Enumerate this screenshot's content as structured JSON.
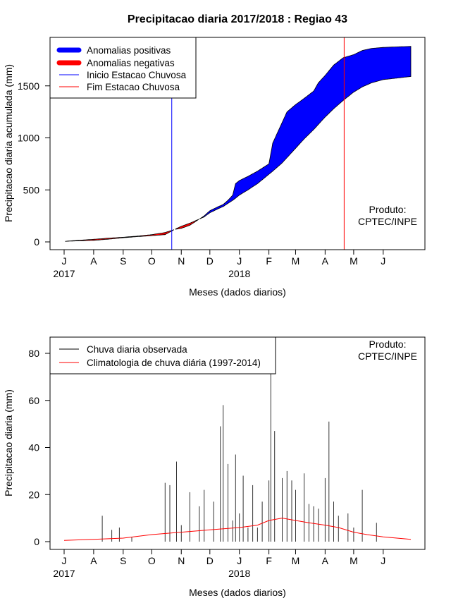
{
  "chart_data": [
    {
      "type": "area",
      "title": "Precipitacao diaria 2017/2018 : Regiao 43",
      "xlabel": "Meses (dados diarios)",
      "ylabel": "Precipitacao diaria acumulada (mm)",
      "ylim": [
        0,
        1900
      ],
      "yticks": [
        0,
        500,
        1000,
        1500
      ],
      "x_axis": {
        "start": "2017-07-01",
        "end": "2018-06-30",
        "month_ticks": [
          "J",
          "A",
          "S",
          "O",
          "N",
          "D",
          "J",
          "F",
          "M",
          "A",
          "M",
          "J"
        ],
        "year_labels": [
          {
            "label": "2017",
            "month_index": 0
          },
          {
            "label": "2018",
            "month_index": 6
          }
        ]
      },
      "legend": {
        "position": "top-left",
        "entries": [
          {
            "label": "Anomalias positivas",
            "color": "#0000ff",
            "style": "thick"
          },
          {
            "label": "Anomalias negativas",
            "color": "#ff0000",
            "style": "thick"
          },
          {
            "label": "Inicio Estacao Chuvosa",
            "color": "#0000ff",
            "style": "thin"
          },
          {
            "label": "Fim Estacao Chuvosa",
            "color": "#ff0000",
            "style": "thin"
          }
        ]
      },
      "annotation": {
        "line1": "Produto:",
        "line2": "CPTEC/INPE",
        "position": "bottom-right"
      },
      "rainy_season": {
        "start": "2017-10-22",
        "end": "2018-04-21"
      },
      "series": [
        {
          "name": "observed",
          "x": [
            "2017-07-01",
            "2017-07-15",
            "2017-08-01",
            "2017-08-15",
            "2017-09-01",
            "2017-09-15",
            "2017-10-01",
            "2017-10-15",
            "2017-10-25",
            "2017-11-01",
            "2017-11-10",
            "2017-11-15",
            "2017-11-25",
            "2017-12-01",
            "2017-12-10",
            "2017-12-15",
            "2017-12-20",
            "2017-12-25",
            "2017-12-28",
            "2018-01-01",
            "2018-01-10",
            "2018-01-20",
            "2018-02-01",
            "2018-02-05",
            "2018-02-10",
            "2018-02-15",
            "2018-02-20",
            "2018-03-01",
            "2018-03-10",
            "2018-03-20",
            "2018-03-25",
            "2018-04-01",
            "2018-04-10",
            "2018-04-20",
            "2018-05-01",
            "2018-05-10",
            "2018-05-20",
            "2018-06-01",
            "2018-06-30"
          ],
          "values": [
            5,
            10,
            15,
            25,
            40,
            50,
            60,
            70,
            120,
            130,
            160,
            190,
            250,
            300,
            340,
            360,
            400,
            450,
            560,
            590,
            630,
            680,
            750,
            950,
            1050,
            1150,
            1250,
            1320,
            1380,
            1450,
            1530,
            1600,
            1700,
            1770,
            1800,
            1840,
            1860,
            1870,
            1880
          ]
        },
        {
          "name": "climatology",
          "x": [
            "2017-07-01",
            "2017-07-15",
            "2017-08-01",
            "2017-08-15",
            "2017-09-01",
            "2017-09-15",
            "2017-10-01",
            "2017-10-15",
            "2017-10-25",
            "2017-11-01",
            "2017-11-10",
            "2017-11-15",
            "2017-11-25",
            "2017-12-01",
            "2017-12-10",
            "2017-12-15",
            "2017-12-20",
            "2017-12-25",
            "2017-12-28",
            "2018-01-01",
            "2018-01-10",
            "2018-01-20",
            "2018-02-01",
            "2018-02-05",
            "2018-02-10",
            "2018-02-15",
            "2018-02-20",
            "2018-03-01",
            "2018-03-10",
            "2018-03-20",
            "2018-03-25",
            "2018-04-01",
            "2018-04-10",
            "2018-04-20",
            "2018-05-01",
            "2018-05-10",
            "2018-05-20",
            "2018-06-01",
            "2018-06-30"
          ],
          "values": [
            5,
            15,
            25,
            35,
            45,
            55,
            70,
            90,
            120,
            150,
            180,
            200,
            240,
            280,
            320,
            340,
            370,
            400,
            420,
            450,
            500,
            560,
            650,
            680,
            720,
            760,
            810,
            900,
            990,
            1080,
            1130,
            1200,
            1280,
            1360,
            1440,
            1490,
            1530,
            1560,
            1590
          ]
        }
      ]
    },
    {
      "type": "bar",
      "xlabel": "Meses (dados diarios)",
      "ylabel": "Precipitacao diaria (mm)",
      "ylim": [
        0,
        85
      ],
      "yticks": [
        0,
        20,
        40,
        60,
        80
      ],
      "x_axis": {
        "start": "2017-07-01",
        "end": "2018-06-30",
        "month_ticks": [
          "J",
          "A",
          "S",
          "O",
          "N",
          "D",
          "J",
          "F",
          "M",
          "A",
          "M",
          "J"
        ],
        "year_labels": [
          {
            "label": "2017",
            "month_index": 0
          },
          {
            "label": "2018",
            "month_index": 6
          }
        ]
      },
      "legend": {
        "position": "top-left",
        "entries": [
          {
            "label": "Chuva diaria observada",
            "color": "#000000"
          },
          {
            "label": "Climatologia de chuva diária (1997-2014)",
            "color": "#ff0000"
          }
        ]
      },
      "annotation": {
        "line1": "Produto:",
        "line2": "CPTEC/INPE",
        "position": "top-right"
      },
      "series": [
        {
          "name": "Chuva diaria observada",
          "x": [
            "2017-08-10",
            "2017-08-20",
            "2017-08-28",
            "2017-09-10",
            "2017-10-15",
            "2017-10-20",
            "2017-10-27",
            "2017-11-01",
            "2017-11-10",
            "2017-11-20",
            "2017-11-25",
            "2017-12-05",
            "2017-12-12",
            "2017-12-15",
            "2017-12-20",
            "2017-12-25",
            "2017-12-28",
            "2018-01-01",
            "2018-01-05",
            "2018-01-10",
            "2018-01-15",
            "2018-01-20",
            "2018-01-25",
            "2018-02-01",
            "2018-02-03",
            "2018-02-07",
            "2018-02-15",
            "2018-02-20",
            "2018-02-25",
            "2018-03-01",
            "2018-03-10",
            "2018-03-15",
            "2018-03-20",
            "2018-03-25",
            "2018-04-01",
            "2018-04-05",
            "2018-04-10",
            "2018-04-15",
            "2018-04-25",
            "2018-05-01",
            "2018-05-10",
            "2018-05-25"
          ],
          "values": [
            11,
            5,
            6,
            2,
            25,
            24,
            34,
            7,
            21,
            15,
            22,
            17,
            49,
            58,
            33,
            9,
            37,
            12,
            28,
            6,
            24,
            6,
            17,
            26,
            82,
            47,
            27,
            30,
            26,
            22,
            29,
            16,
            15,
            14,
            27,
            51,
            17,
            11,
            12,
            6,
            22,
            8
          ]
        },
        {
          "name": "Climatologia de chuva diária (1997-2014)",
          "x": [
            "2017-07-01",
            "2017-08-01",
            "2017-09-01",
            "2017-10-01",
            "2017-11-01",
            "2017-12-01",
            "2018-01-01",
            "2018-01-20",
            "2018-02-01",
            "2018-02-15",
            "2018-03-01",
            "2018-03-15",
            "2018-04-01",
            "2018-04-15",
            "2018-05-01",
            "2018-05-15",
            "2018-06-01",
            "2018-06-30"
          ],
          "values": [
            0.5,
            1,
            1.5,
            3,
            4,
            5,
            6,
            7,
            9,
            10,
            9,
            8,
            7,
            6,
            4,
            3,
            2,
            1
          ]
        }
      ]
    }
  ]
}
